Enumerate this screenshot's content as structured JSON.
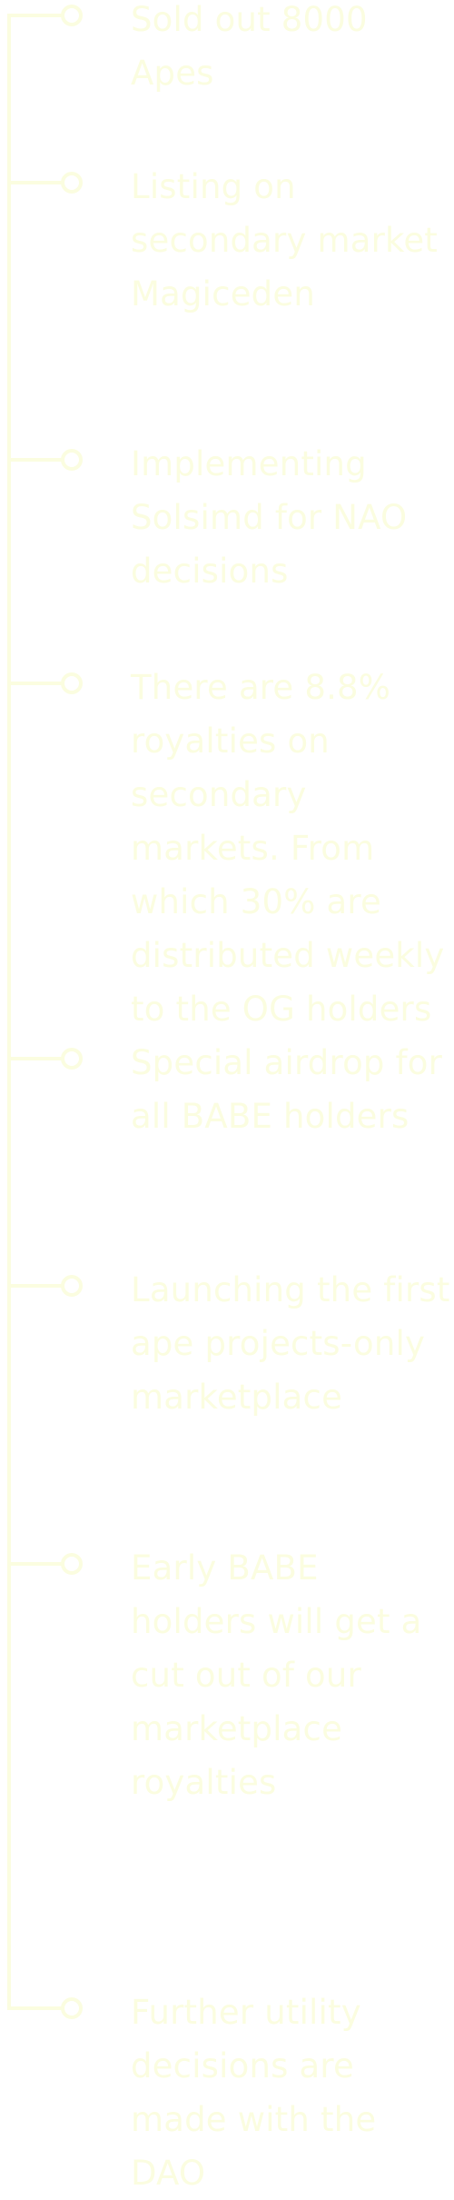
{
  "roadmap": {
    "items": [
      {
        "text": "Sold out 8000 Apes"
      },
      {
        "text": "Listing on secondary market Magiceden"
      },
      {
        "text": "Implementing Solsimd for NAO decisions"
      },
      {
        "text": "There are 8.8% royalties on secondary markets. From which 30% are distributed weekly to the OG holders"
      },
      {
        "text": "Special airdrop for all BABE holders"
      },
      {
        "text": "Launching the first ape projects-only marketplace"
      },
      {
        "text": "Early BABE holders will get a cut out of our marketplace royalties"
      },
      {
        "text": "Further utility decisions are made with the DAO"
      }
    ]
  },
  "colors": {
    "background": "#ffffff",
    "line": "#fbfde0",
    "text": "#fbfde0"
  }
}
